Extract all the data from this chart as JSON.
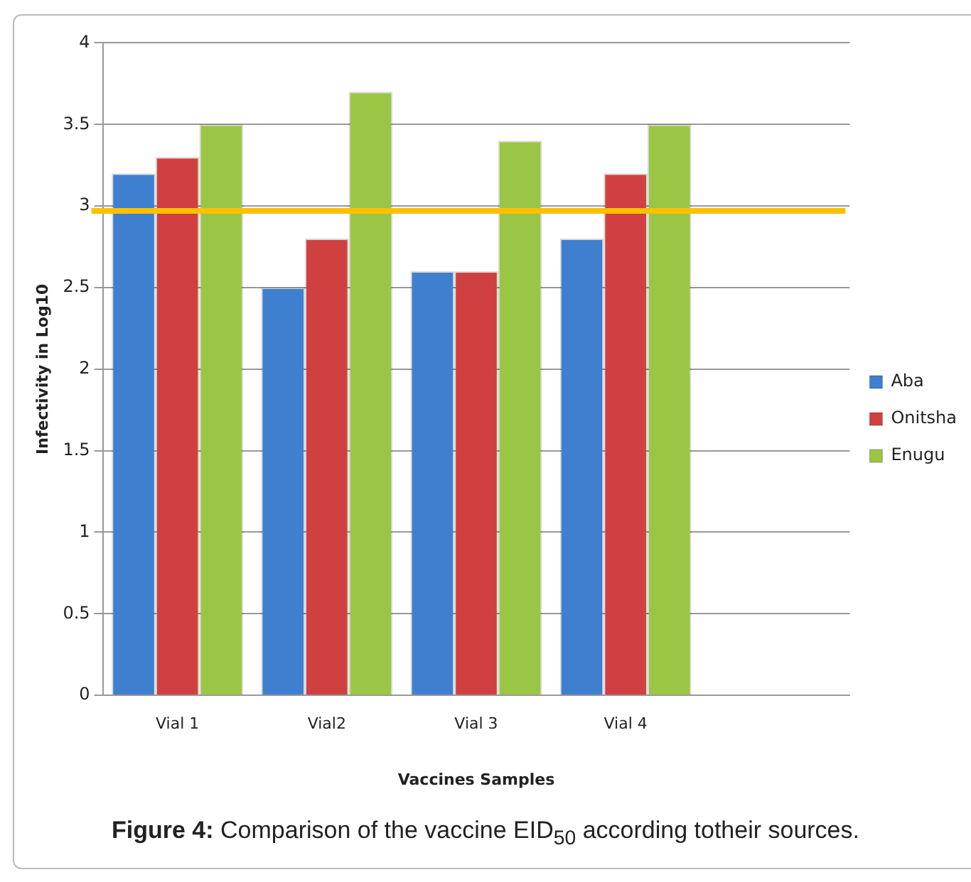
{
  "chart_data": {
    "type": "bar",
    "xlabel": "Vaccines Samples",
    "ylabel": "Infectivity in Log10",
    "categories": [
      "Vial 1",
      "Vial2",
      "Vial 3",
      "Vial 4",
      null
    ],
    "series": [
      {
        "name": "Aba",
        "color": "#3f7fcf",
        "values": [
          3.2,
          2.5,
          2.6,
          2.8,
          null
        ]
      },
      {
        "name": "Onitsha",
        "color": "#d04040",
        "values": [
          3.3,
          2.8,
          2.6,
          3.2,
          null
        ]
      },
      {
        "name": "Enugu",
        "color": "#9bc645",
        "values": [
          3.5,
          3.7,
          3.4,
          3.5,
          null
        ]
      }
    ],
    "ylim": [
      0,
      4
    ],
    "yticks": [
      0,
      0.5,
      1,
      1.5,
      2,
      2.5,
      3,
      3.5,
      4
    ],
    "grid": "y",
    "legend": "right",
    "ref_lines": [
      {
        "axis": "y",
        "value": 2.97,
        "color": "#ffc000"
      }
    ],
    "annotations": [
      "Figure 4: Comparison of the vaccine EID$_{50}$ according totheir sources."
    ]
  }
}
